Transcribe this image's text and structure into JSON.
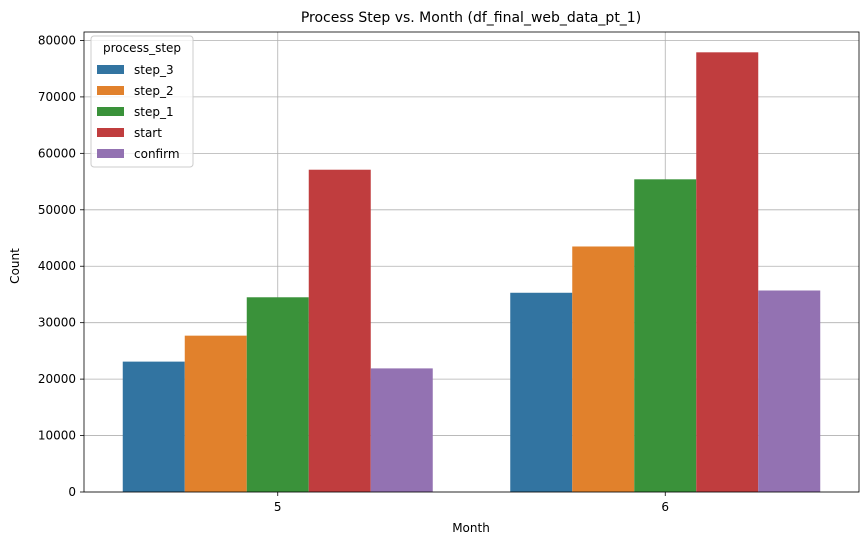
{
  "chart_data": {
    "type": "bar",
    "title": "Process Step vs. Month (df_final_web_data_pt_1)",
    "xlabel": "Month",
    "ylabel": "Count",
    "categories": [
      "5",
      "6"
    ],
    "ylim": [
      0,
      81500
    ],
    "yticks": [
      0,
      10000,
      20000,
      30000,
      40000,
      50000,
      60000,
      70000,
      80000
    ],
    "grid": true,
    "legend": {
      "title": "process_step",
      "placement": "top-left"
    },
    "series": [
      {
        "name": "step_3",
        "color": "#3274a1",
        "values": [
          23100,
          35300
        ]
      },
      {
        "name": "step_2",
        "color": "#e1812c",
        "values": [
          27700,
          43500
        ]
      },
      {
        "name": "step_1",
        "color": "#3a923a",
        "values": [
          34500,
          55400
        ]
      },
      {
        "name": "start",
        "color": "#c03d3e",
        "values": [
          57100,
          77900
        ]
      },
      {
        "name": "confirm",
        "color": "#9372b2",
        "values": [
          21900,
          35700
        ]
      }
    ]
  }
}
